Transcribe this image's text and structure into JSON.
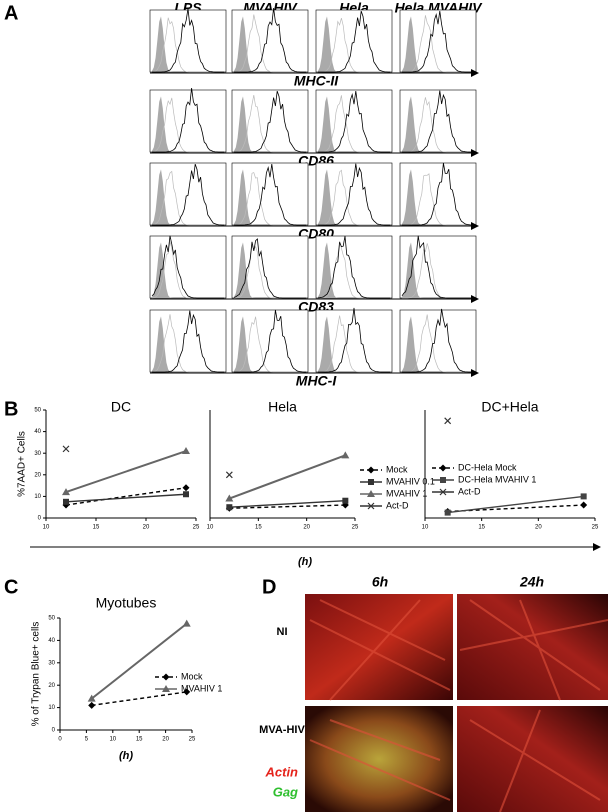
{
  "panel_labels": [
    "A",
    "B",
    "C",
    "D"
  ],
  "panel_a": {
    "columns": [
      "LPS",
      "MVAHIV",
      "Hela",
      "Hela MVAHIV"
    ],
    "markers": [
      "MHC-II",
      "CD86",
      "CD80",
      "CD83",
      "MHC-I"
    ]
  },
  "panel_b_x_label": "(h)",
  "chart_data": [
    {
      "type": "line",
      "title": "DC",
      "y_label": "%7AAD+ Cells",
      "x": [
        12,
        24
      ],
      "xlim": [
        10,
        25
      ],
      "xticks": [
        10,
        15,
        20,
        25
      ],
      "ylim": [
        0,
        50
      ],
      "yticks": [
        0,
        10,
        20,
        30,
        40,
        50
      ],
      "series": [
        {
          "name": "Mock",
          "color": "#000000",
          "values": [
            6,
            14
          ]
        },
        {
          "name": "MVAHIV 0.1",
          "color": "#333333",
          "values": [
            7.5,
            11
          ]
        },
        {
          "name": "MVAHIV 1",
          "color": "#666666",
          "values": [
            12,
            31
          ]
        },
        {
          "name": "Act-D",
          "color": "#333333",
          "values": [
            32,
            null
          ]
        }
      ]
    },
    {
      "type": "line",
      "title": "Hela",
      "x": [
        12,
        24
      ],
      "xlim": [
        10,
        25
      ],
      "xticks": [
        10,
        15,
        20,
        25
      ],
      "ylim": [
        0,
        50
      ],
      "legend": true,
      "series": [
        {
          "name": "Mock",
          "color": "#000000",
          "values": [
            4.5,
            6
          ]
        },
        {
          "name": "MVAHIV 0.1",
          "color": "#333333",
          "values": [
            5,
            8
          ]
        },
        {
          "name": "MVAHIV 1",
          "color": "#666666",
          "values": [
            9,
            29
          ]
        },
        {
          "name": "Act-D",
          "color": "#333333",
          "values": [
            20,
            null
          ]
        }
      ]
    },
    {
      "type": "line",
      "title": "DC+Hela",
      "x": [
        12,
        24
      ],
      "xlim": [
        10,
        25
      ],
      "xticks": [
        10,
        15,
        20,
        25
      ],
      "ylim": [
        0,
        50
      ],
      "legend": true,
      "series": [
        {
          "name": "DC-Hela Mock",
          "color": "#000000",
          "values": [
            3,
            6
          ]
        },
        {
          "name": "DC-Hela MVAHIV 1",
          "color": "#444444",
          "values": [
            2.5,
            10
          ]
        },
        {
          "name": "Act-D",
          "color": "#333333",
          "values": [
            45,
            null
          ]
        }
      ]
    },
    {
      "type": "line",
      "title": "Myotubes",
      "y_label": "% of Trypan Blue+ cells",
      "x_label": "(h)",
      "x": [
        6,
        24
      ],
      "xlim": [
        0,
        25
      ],
      "xticks": [
        0,
        5,
        10,
        15,
        20,
        25
      ],
      "ylim": [
        0,
        50
      ],
      "yticks": [
        0,
        10,
        20,
        30,
        40,
        50
      ],
      "legend": true,
      "series": [
        {
          "name": "Mock",
          "color": "#000000",
          "values": [
            11,
            17
          ]
        },
        {
          "name": "MVAHIV 1",
          "color": "#666666",
          "values": [
            14,
            47.5
          ]
        }
      ]
    }
  ],
  "panel_d": {
    "columns": [
      "6h",
      "24h"
    ],
    "rows": [
      "NI",
      "MVA-HIV"
    ],
    "stain_labels": [
      "Actin",
      "Gag"
    ]
  }
}
